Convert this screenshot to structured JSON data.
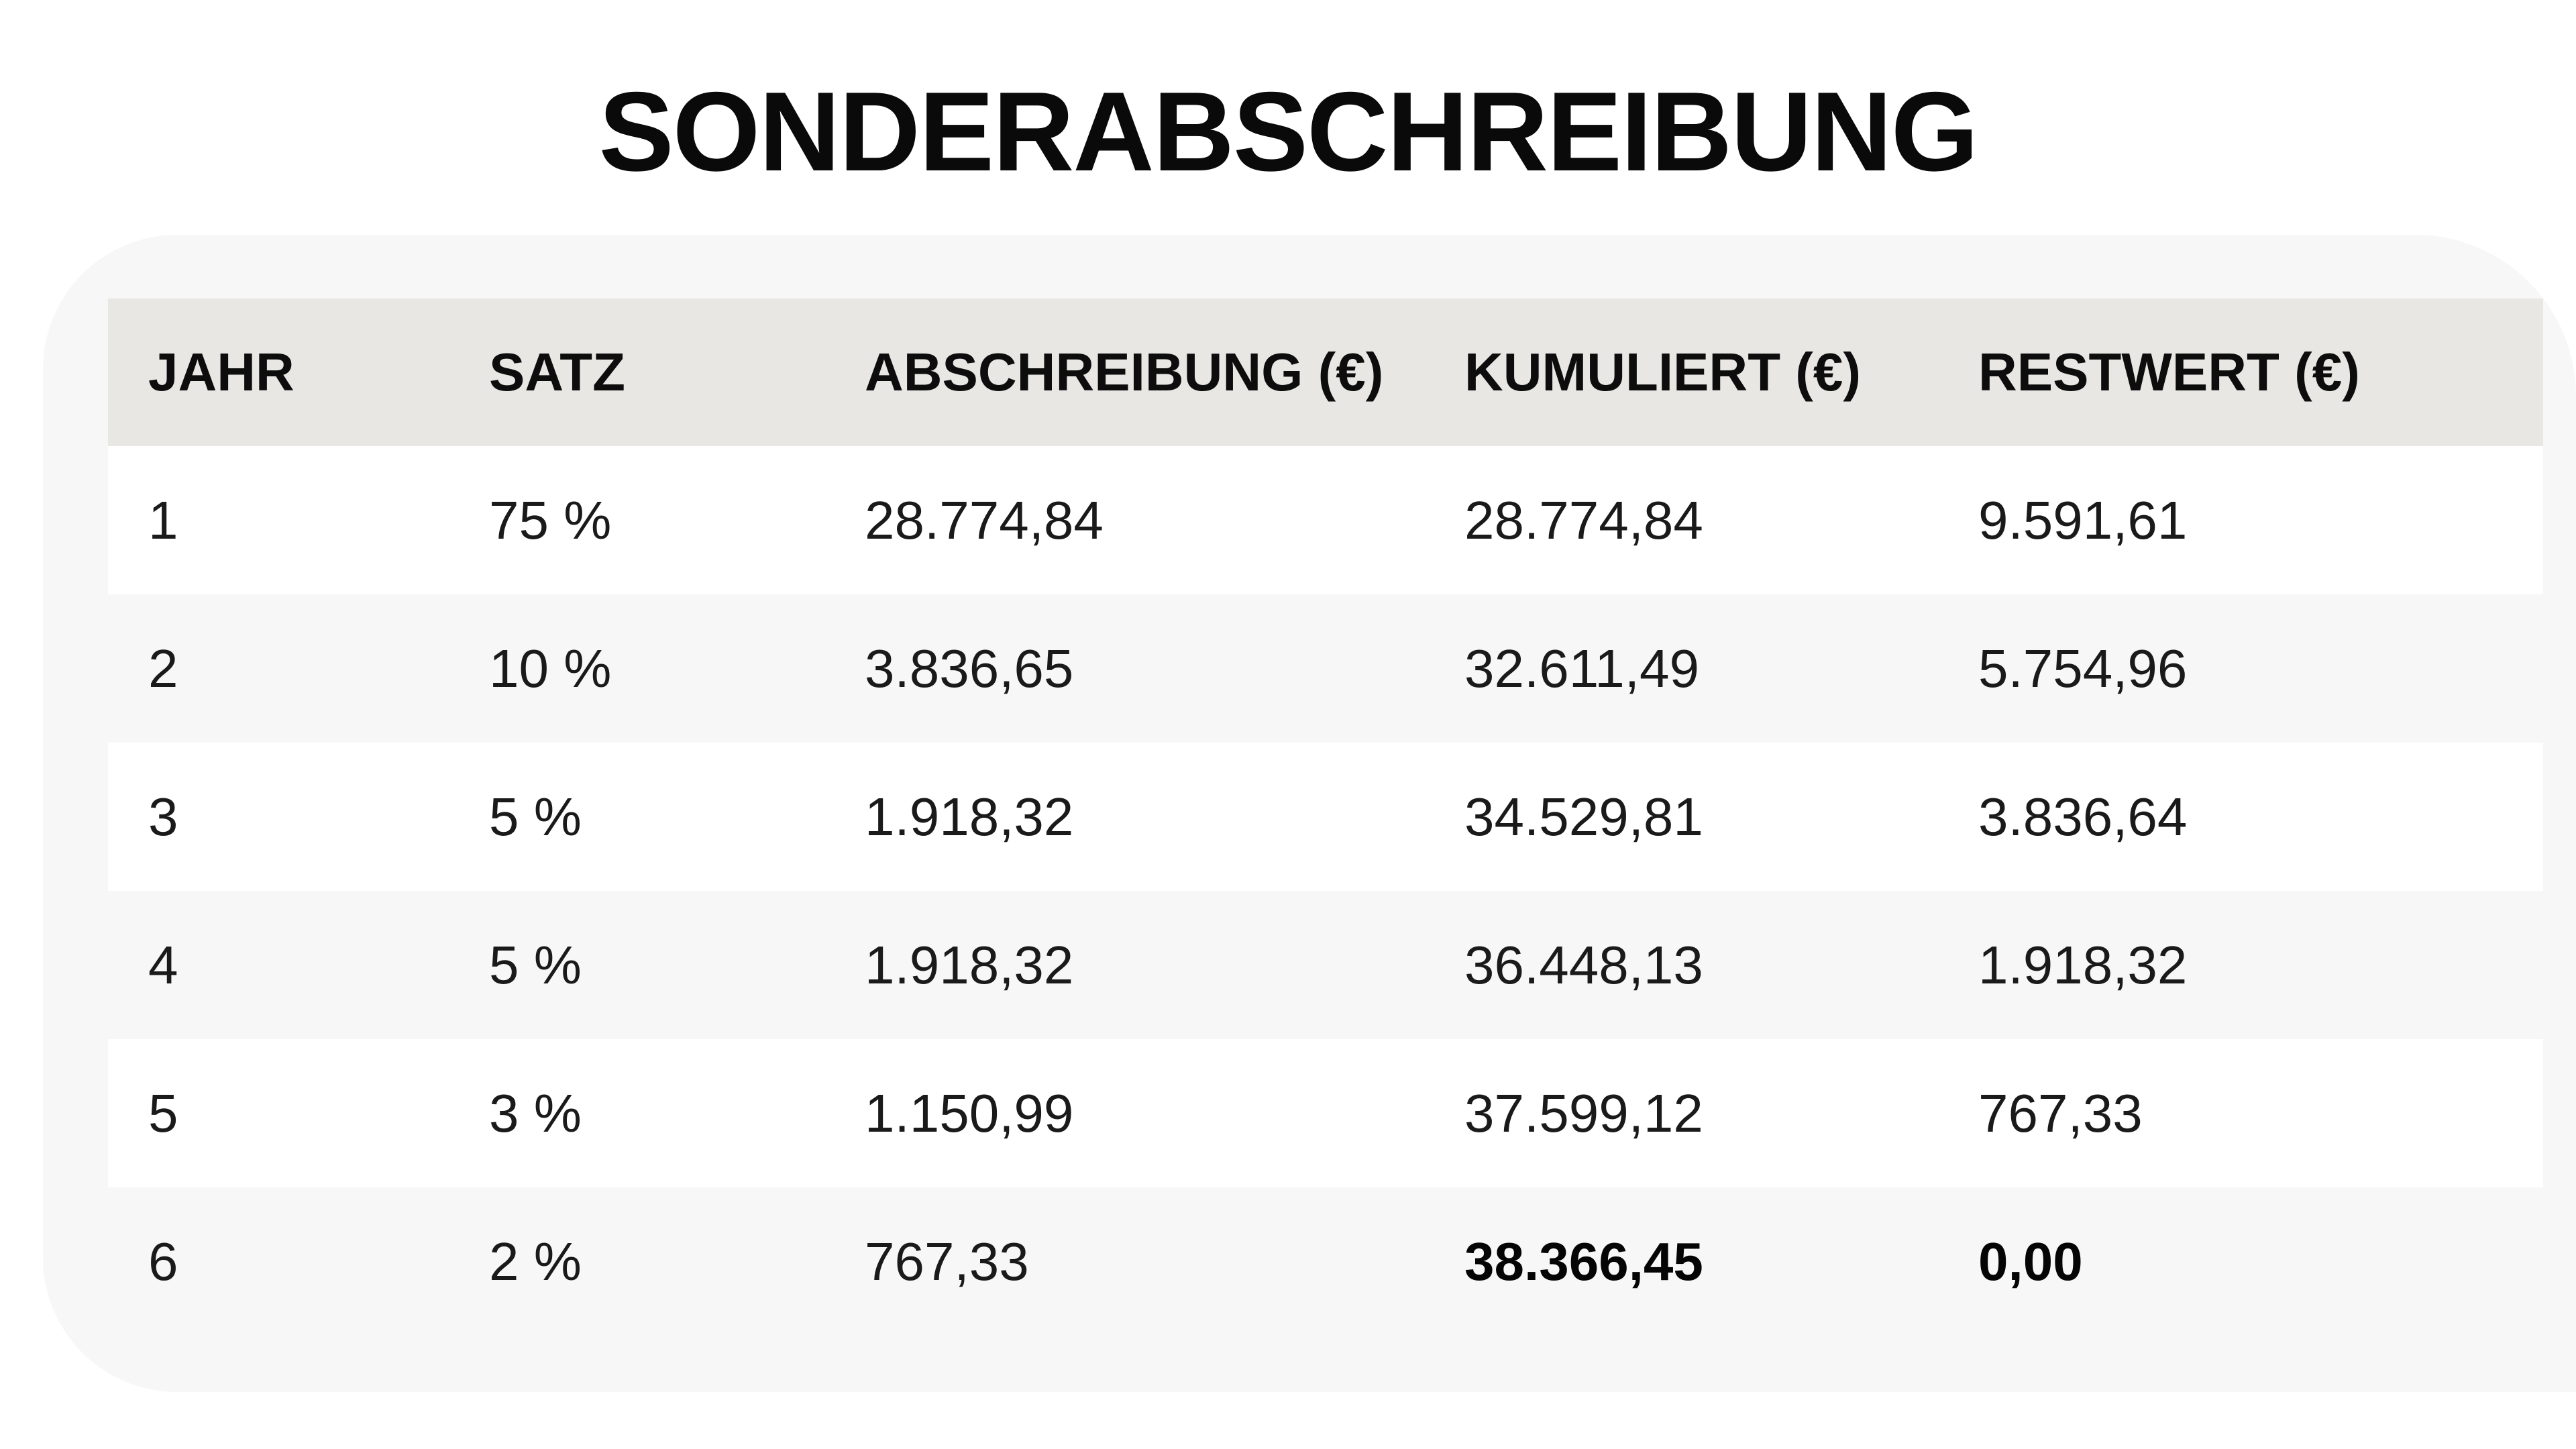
{
  "title": "SONDERABSCHREIBUNG",
  "table": {
    "headers": [
      "JAHR",
      "SATZ",
      "ABSCHREIBUNG (€)",
      "KUMULIERT (€)",
      "RESTWERT (€)"
    ],
    "rows": [
      [
        "1",
        "75 %",
        "28.774,84",
        "28.774,84",
        "9.591,61"
      ],
      [
        "2",
        "10 %",
        "3.836,65",
        "32.611,49",
        "5.754,96"
      ],
      [
        "3",
        "5 %",
        "1.918,32",
        "34.529,81",
        "3.836,64"
      ],
      [
        "4",
        "5 %",
        "1.918,32",
        "36.448,13",
        "1.918,32"
      ],
      [
        "5",
        "3 %",
        "1.150,99",
        "37.599,12",
        "767,33"
      ],
      [
        "6",
        "2 %",
        "767,33",
        "38.366,45",
        "0,00"
      ]
    ]
  },
  "colors": {
    "header_background": "#e8e7e4",
    "card_background": "#f7f7f7",
    "row_white": "#ffffff"
  }
}
